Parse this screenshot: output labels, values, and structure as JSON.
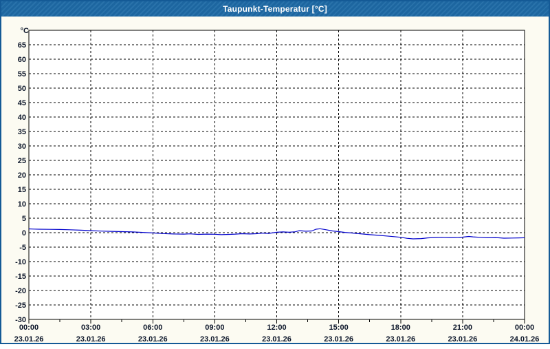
{
  "window": {
    "title": "Taupunkt-Temperatur [°C]"
  },
  "colors": {
    "titlebar": "#1e6aa6",
    "window_border": "#145a96",
    "background": "#fcfbf2",
    "plot_background": "#ffffff",
    "grid": "#000000",
    "axis_label": "#0a1428",
    "series_line": "#0000cc",
    "title_text": "#ffffff"
  },
  "chart_data": {
    "type": "line",
    "title": "Taupunkt-Temperatur [°C]",
    "ylabel": "°C",
    "xlabel": "",
    "ylim": [
      -30,
      70
    ],
    "ytick_step": 5,
    "yticks": [
      65,
      60,
      55,
      50,
      45,
      40,
      35,
      30,
      25,
      20,
      15,
      10,
      5,
      0,
      -5,
      -10,
      -15,
      -20,
      -25,
      -30
    ],
    "x_range_hours": [
      0,
      24
    ],
    "minor_tick_interval_hours": 1.5,
    "grid": "dashed",
    "legend_position": "none",
    "xticks": [
      {
        "hour": 0,
        "time": "00:00",
        "date": "23.01.26"
      },
      {
        "hour": 3,
        "time": "03:00",
        "date": "23.01.26"
      },
      {
        "hour": 6,
        "time": "06:00",
        "date": "23.01.26"
      },
      {
        "hour": 9,
        "time": "09:00",
        "date": "23.01.26"
      },
      {
        "hour": 12,
        "time": "12:00",
        "date": "23.01.26"
      },
      {
        "hour": 15,
        "time": "15:00",
        "date": "23.01.26"
      },
      {
        "hour": 18,
        "time": "18:00",
        "date": "23.01.26"
      },
      {
        "hour": 21,
        "time": "21:00",
        "date": "23.01.26"
      },
      {
        "hour": 24,
        "time": "00:00",
        "date": "24.01.26"
      }
    ],
    "series": [
      {
        "name": "Taupunkt-Temperatur",
        "color": "#0000cc",
        "points": [
          [
            0,
            1.3
          ],
          [
            0.25,
            1.25
          ],
          [
            0.5,
            1.2
          ],
          [
            1,
            1.15
          ],
          [
            1.5,
            1.1
          ],
          [
            2,
            1.0
          ],
          [
            2.5,
            0.85
          ],
          [
            3,
            0.7
          ],
          [
            3.5,
            0.55
          ],
          [
            4,
            0.45
          ],
          [
            4.5,
            0.35
          ],
          [
            5,
            0.25
          ],
          [
            5.5,
            0.1
          ],
          [
            6,
            -0.1
          ],
          [
            6.5,
            -0.3
          ],
          [
            7,
            -0.45
          ],
          [
            7.5,
            -0.5
          ],
          [
            7.8,
            -0.4
          ],
          [
            8.2,
            -0.6
          ],
          [
            8.6,
            -0.5
          ],
          [
            9,
            -0.55
          ],
          [
            9.3,
            -0.7
          ],
          [
            9.7,
            -0.6
          ],
          [
            10,
            -0.5
          ],
          [
            10.3,
            -0.35
          ],
          [
            10.7,
            -0.45
          ],
          [
            11,
            -0.35
          ],
          [
            11.3,
            -0.15
          ],
          [
            11.6,
            -0.25
          ],
          [
            12,
            0.15
          ],
          [
            12.3,
            0.25
          ],
          [
            12.6,
            0.15
          ],
          [
            12.9,
            0.3
          ],
          [
            13.1,
            0.7
          ],
          [
            13.4,
            0.5
          ],
          [
            13.7,
            0.6
          ],
          [
            13.9,
            1.2
          ],
          [
            14.1,
            1.35
          ],
          [
            14.4,
            1.0
          ],
          [
            14.7,
            0.6
          ],
          [
            15,
            0.35
          ],
          [
            15.3,
            0.1
          ],
          [
            15.6,
            -0.1
          ],
          [
            16,
            -0.35
          ],
          [
            16.5,
            -0.7
          ],
          [
            17,
            -0.95
          ],
          [
            17.5,
            -1.25
          ],
          [
            18,
            -1.6
          ],
          [
            18.3,
            -1.95
          ],
          [
            18.6,
            -2.15
          ],
          [
            19,
            -2.05
          ],
          [
            19.3,
            -1.8
          ],
          [
            19.7,
            -1.65
          ],
          [
            20,
            -1.6
          ],
          [
            20.4,
            -1.7
          ],
          [
            20.8,
            -1.65
          ],
          [
            21,
            -1.55
          ],
          [
            21.3,
            -1.3
          ],
          [
            21.5,
            -1.45
          ],
          [
            21.8,
            -1.6
          ],
          [
            22.2,
            -1.75
          ],
          [
            22.6,
            -1.7
          ],
          [
            23,
            -1.9
          ],
          [
            23.4,
            -1.85
          ],
          [
            23.7,
            -1.8
          ],
          [
            24,
            -1.75
          ]
        ]
      }
    ]
  }
}
